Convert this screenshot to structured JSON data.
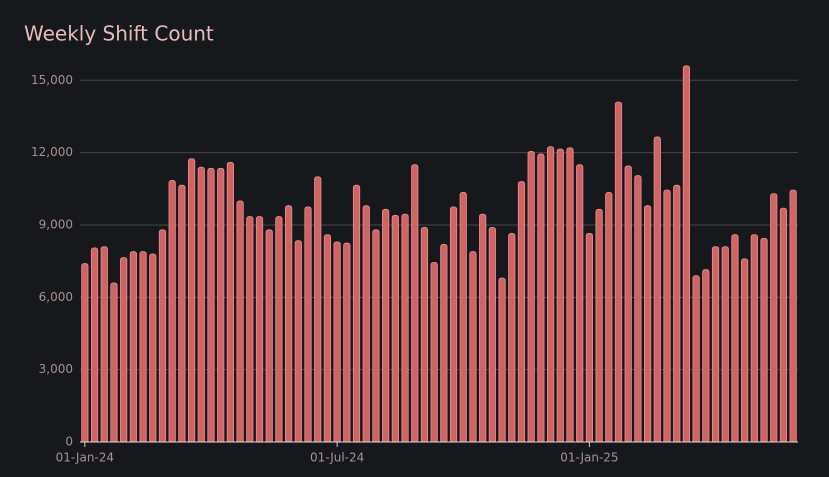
{
  "chart_data": {
    "type": "bar",
    "title": "Weekly Shift Count",
    "categories": [
      "01-Jan-24",
      null,
      null,
      null,
      null,
      null,
      null,
      null,
      null,
      null,
      null,
      null,
      null,
      null,
      null,
      null,
      null,
      null,
      null,
      null,
      null,
      null,
      null,
      null,
      null,
      null,
      "01-Jul-24",
      null,
      null,
      null,
      null,
      null,
      null,
      null,
      null,
      null,
      null,
      null,
      null,
      null,
      null,
      null,
      null,
      null,
      null,
      null,
      null,
      null,
      null,
      null,
      null,
      null,
      "01-Jan-25",
      null,
      null,
      null,
      null,
      null,
      null,
      null,
      null,
      null,
      null,
      null,
      null,
      null,
      null,
      null,
      null,
      null,
      null,
      null,
      null,
      null
    ],
    "values": [
      7400,
      8050,
      8100,
      6600,
      7650,
      7900,
      7900,
      7800,
      8800,
      10850,
      10650,
      11750,
      11400,
      11350,
      11350,
      11600,
      10000,
      9350,
      9350,
      8800,
      9350,
      9800,
      8350,
      9750,
      11000,
      8600,
      8300,
      8250,
      10650,
      9800,
      8800,
      9650,
      9400,
      9450,
      11500,
      8900,
      7450,
      8200,
      9750,
      10350,
      7900,
      9450,
      8900,
      6800,
      8650,
      10800,
      12050,
      11950,
      12250,
      12150,
      12200,
      11500,
      8650,
      9650,
      10350,
      14100,
      11450,
      11050,
      9800,
      12650,
      10450,
      10650,
      15600,
      6900,
      7150,
      8100,
      8100,
      8600,
      7600,
      8600,
      8450,
      10300,
      9700,
      10450
    ],
    "color": "#d06464",
    "ylim": [
      0,
      15800
    ],
    "yticks": [
      0,
      {
        "value": 3000,
        "label": "3,000"
      },
      {
        "value": 6000,
        "label": "6,000"
      },
      {
        "value": 9000,
        "label": "9,000"
      },
      {
        "value": 12000,
        "label": "12,000"
      },
      {
        "value": 15000,
        "label": "15,000"
      }
    ],
    "grid": true
  }
}
